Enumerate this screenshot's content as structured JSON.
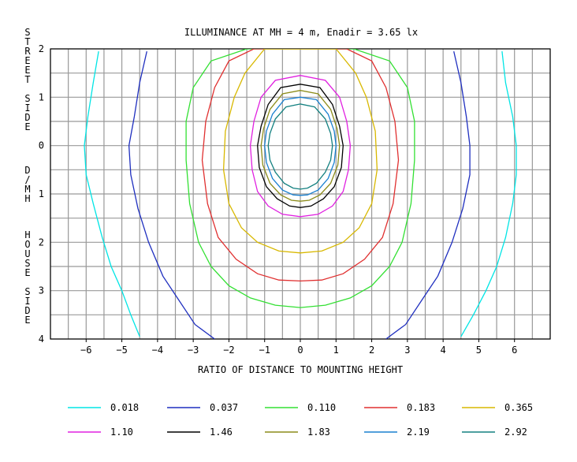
{
  "chart_data": {
    "type": "contour",
    "title": "ILLUMINANCE AT MH = 4 m, Enadir = 3.65 lx",
    "xlabel": "RATIO OF DISTANCE TO MOUNTING HEIGHT",
    "ylabel_top": "STREET SIDE",
    "ylabel_mid": "D/MH",
    "ylabel_bottom": "HOUSE SIDE",
    "xlim": [
      -7,
      7
    ],
    "ylim": [
      -2,
      4
    ],
    "x_ticks": [
      -6,
      -5,
      -4,
      -3,
      -2,
      -1,
      0,
      1,
      2,
      3,
      4,
      5,
      6
    ],
    "y_ticks": [
      -2,
      -1,
      0,
      1,
      2,
      3,
      4
    ],
    "y_tick_labels": [
      "2",
      "1",
      "0",
      "1",
      "2",
      "3",
      "4"
    ],
    "grid": true,
    "legend_position": "bottom",
    "series": [
      {
        "name": "0.018",
        "color": "#00e5e5",
        "x": [
          -5.65,
          -5.8,
          -5.95,
          -6.05,
          -6.0,
          -5.8,
          -5.55,
          -5.3,
          -5.0,
          -4.75,
          -4.5
        ],
        "y": [
          -1.95,
          -1.3,
          -0.6,
          0.0,
          0.6,
          1.2,
          1.9,
          2.5,
          3.0,
          3.5,
          3.95
        ],
        "x_right": [
          5.65,
          5.75,
          5.95,
          6.05,
          6.05,
          5.95,
          5.75,
          5.5,
          5.2,
          4.85,
          4.5
        ],
        "y_right": [
          -1.95,
          -1.3,
          -0.6,
          0.0,
          0.6,
          1.2,
          1.9,
          2.5,
          3.0,
          3.5,
          3.95
        ]
      },
      {
        "name": "0.037",
        "color": "#1f2fbf",
        "x": [
          -4.3,
          -4.5,
          -4.65,
          -4.8,
          -4.75,
          -4.55,
          -4.25,
          -3.85,
          -3.4,
          -2.95,
          -2.4
        ],
        "y": [
          -1.95,
          -1.3,
          -0.6,
          0.0,
          0.6,
          1.3,
          2.0,
          2.7,
          3.2,
          3.7,
          4.0
        ],
        "x_right": [
          4.3,
          4.5,
          4.65,
          4.75,
          4.75,
          4.55,
          4.25,
          3.85,
          3.4,
          2.95,
          2.4
        ],
        "y_right": [
          -1.95,
          -1.3,
          -0.6,
          0.0,
          0.6,
          1.3,
          2.0,
          2.7,
          3.2,
          3.7,
          4.0
        ]
      },
      {
        "name": "0.110",
        "color": "#33e033",
        "x": [
          0,
          -1.5,
          -2.5,
          -3.0,
          -3.2,
          -3.2,
          -3.1,
          -2.85,
          -2.5,
          -2.0,
          -1.4,
          -0.7,
          0
        ],
        "y": [
          -2.0,
          -2.0,
          -1.75,
          -1.2,
          -0.5,
          0.3,
          1.2,
          2.0,
          2.5,
          2.9,
          3.15,
          3.3,
          3.35
        ],
        "closed_mirror": true
      },
      {
        "name": "0.183",
        "color": "#e03030",
        "x": [
          0,
          -1.3,
          -2.0,
          -2.4,
          -2.65,
          -2.75,
          -2.6,
          -2.3,
          -1.8,
          -1.2,
          -0.6,
          0
        ],
        "y": [
          -2.0,
          -2.0,
          -1.75,
          -1.2,
          -0.5,
          0.3,
          1.2,
          1.9,
          2.35,
          2.65,
          2.78,
          2.8
        ],
        "closed_mirror": true
      },
      {
        "name": "0.365",
        "color": "#d8b800",
        "x": [
          0,
          -1.0,
          -1.55,
          -1.85,
          -2.1,
          -2.15,
          -2.0,
          -1.65,
          -1.2,
          -0.6,
          0
        ],
        "y": [
          -2.0,
          -2.0,
          -1.5,
          -1.0,
          -0.3,
          0.5,
          1.2,
          1.7,
          2.0,
          2.18,
          2.22
        ],
        "closed_mirror": true
      },
      {
        "name": "1.10",
        "color": "#e020e0",
        "x": [
          0,
          -0.7,
          -1.1,
          -1.3,
          -1.4,
          -1.35,
          -1.2,
          -0.9,
          -0.5,
          0
        ],
        "y": [
          -1.45,
          -1.35,
          -1.0,
          -0.5,
          0.0,
          0.5,
          0.95,
          1.25,
          1.42,
          1.47
        ],
        "closed_mirror": true
      },
      {
        "name": "1.46",
        "color": "#000000",
        "x": [
          0,
          -0.55,
          -0.9,
          -1.1,
          -1.2,
          -1.15,
          -0.95,
          -0.65,
          -0.3,
          0
        ],
        "y": [
          -1.27,
          -1.2,
          -0.85,
          -0.4,
          0.0,
          0.45,
          0.85,
          1.1,
          1.25,
          1.28
        ],
        "closed_mirror": true
      },
      {
        "name": "1.83",
        "color": "#8c8c1a",
        "x": [
          0,
          -0.5,
          -0.85,
          -1.03,
          -1.1,
          -1.05,
          -0.85,
          -0.55,
          -0.25,
          0
        ],
        "y": [
          -1.14,
          -1.07,
          -0.75,
          -0.35,
          0.0,
          0.4,
          0.78,
          1.02,
          1.13,
          1.15
        ],
        "closed_mirror": true
      },
      {
        "name": "2.19",
        "color": "#1a80d0",
        "x": [
          0,
          -0.45,
          -0.78,
          -0.95,
          -1.0,
          -0.95,
          -0.78,
          -0.5,
          -0.2,
          0
        ],
        "y": [
          -1.0,
          -0.95,
          -0.65,
          -0.3,
          0.0,
          0.35,
          0.68,
          0.92,
          1.02,
          1.03
        ],
        "closed_mirror": true
      },
      {
        "name": "2.92",
        "color": "#138080",
        "x": [
          0,
          -0.4,
          -0.7,
          -0.85,
          -0.9,
          -0.85,
          -0.7,
          -0.45,
          -0.2,
          0
        ],
        "y": [
          -0.86,
          -0.8,
          -0.55,
          -0.25,
          0.0,
          0.3,
          0.55,
          0.78,
          0.88,
          0.9
        ],
        "closed_mirror": true
      }
    ]
  }
}
